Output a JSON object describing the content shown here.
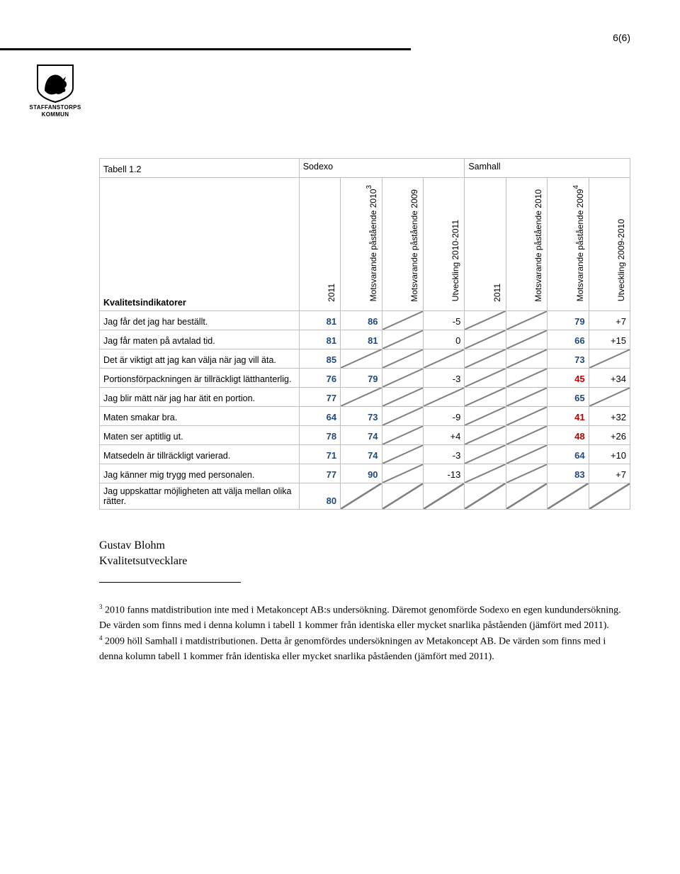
{
  "page_number": "6(6)",
  "logo": {
    "line1": "STAFFANSTORPS",
    "line2": "KOMMUN"
  },
  "table": {
    "title": "Tabell 1.2",
    "group1": "Sodexo",
    "group2": "Samhall",
    "cols": [
      "2011",
      "Motsvarande påstående 2010",
      "Motsvarande påstående 2009",
      "Utveckling 2010-2011",
      "2011",
      "Motsvarande påstående 2010",
      "Motsvarande påstående 2009",
      "Utveckling 2009-2010"
    ],
    "fn_col2": "3",
    "fn_col7": "4",
    "kv_label": "Kvalitetsindikatorer",
    "rows": [
      {
        "label": "Jag får det jag har beställt.",
        "c": [
          "81",
          "86",
          "",
          "-5",
          "",
          "",
          "79",
          "+7"
        ],
        "bold": [
          0,
          1,
          6
        ],
        "red": [],
        "slash": [
          2,
          4,
          5
        ]
      },
      {
        "label": "Jag får maten på avtalad tid.",
        "c": [
          "81",
          "81",
          "",
          "0",
          "",
          "",
          "66",
          "+15"
        ],
        "bold": [
          0,
          1,
          6
        ],
        "red": [],
        "slash": [
          2,
          4,
          5
        ]
      },
      {
        "label": "Det är viktigt att jag kan välja när jag vill äta.",
        "c": [
          "85",
          "",
          "",
          "",
          "",
          "",
          "73",
          ""
        ],
        "bold": [
          0,
          6
        ],
        "red": [],
        "slash": [
          1,
          2,
          3,
          4,
          5,
          7
        ]
      },
      {
        "label": "Portionsförpackningen är tillräckligt lätthanterlig.",
        "c": [
          "76",
          "79",
          "",
          "-3",
          "",
          "",
          "45",
          "+34"
        ],
        "bold": [
          0,
          1,
          6
        ],
        "red": [
          6
        ],
        "slash": [
          2,
          4,
          5
        ]
      },
      {
        "label": "Jag blir mätt när jag har ätit en portion.",
        "c": [
          "77",
          "",
          "",
          "",
          "",
          "",
          "65",
          ""
        ],
        "bold": [
          0,
          6
        ],
        "red": [],
        "slash": [
          1,
          2,
          3,
          4,
          5,
          7
        ]
      },
      {
        "label": "Maten smakar bra.",
        "c": [
          "64",
          "73",
          "",
          "-9",
          "",
          "",
          "41",
          "+32"
        ],
        "bold": [
          0,
          1,
          6
        ],
        "red": [
          6
        ],
        "slash": [
          2,
          4,
          5
        ]
      },
      {
        "label": "Maten ser aptitlig ut.",
        "c": [
          "78",
          "74",
          "",
          "+4",
          "",
          "",
          "48",
          "+26"
        ],
        "bold": [
          0,
          1,
          6
        ],
        "red": [
          6
        ],
        "slash": [
          2,
          4,
          5
        ]
      },
      {
        "label": "Matsedeln är tillräckligt varierad.",
        "c": [
          "71",
          "74",
          "",
          "-3",
          "",
          "",
          "64",
          "+10"
        ],
        "bold": [
          0,
          1,
          6
        ],
        "red": [],
        "slash": [
          2,
          4,
          5
        ]
      },
      {
        "label": "Jag känner mig trygg med personalen.",
        "c": [
          "77",
          "90",
          "",
          "-13",
          "",
          "",
          "83",
          "+7"
        ],
        "bold": [
          0,
          1,
          6
        ],
        "red": [],
        "slash": [
          2,
          4,
          5
        ]
      },
      {
        "label": "Jag uppskattar möjligheten att välja mellan olika rätter.",
        "c": [
          "80",
          "",
          "",
          "",
          "",
          "",
          "",
          ""
        ],
        "bold": [
          0
        ],
        "red": [],
        "slash": [
          1,
          2,
          3,
          4,
          5,
          6,
          7
        ]
      }
    ],
    "colors": {
      "bold_blue": "#1f497d",
      "red": "#c00000",
      "border": "#bfbfbf"
    }
  },
  "signature": {
    "name": "Gustav Blohm",
    "title": "Kvalitetsutvecklare"
  },
  "footnotes": {
    "f3": "2010 fanns matdistribution inte med i Metakoncept AB:s undersökning. Däremot genomförde Sodexo en egen kundundersökning. De värden som finns med i denna kolumn i tabell 1 kommer från identiska eller mycket snarlika påståenden (jämfört med 2011).",
    "f4": "2009 höll Samhall i matdistributionen. Detta år genomfördes undersökningen av Metakoncept AB. De värden som finns med i denna kolumn tabell 1 kommer från identiska eller mycket snarlika påståenden (jämfört med 2011)."
  }
}
